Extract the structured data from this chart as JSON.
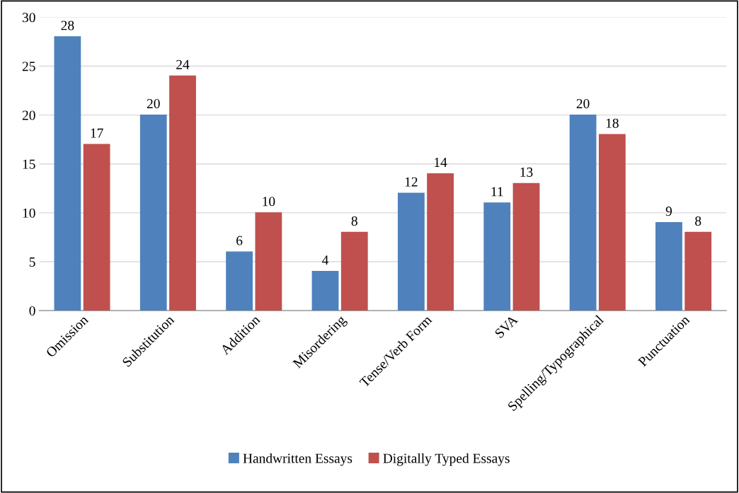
{
  "chart_data": {
    "type": "bar",
    "categories": [
      "Omission",
      "Substitution",
      "Addition",
      "Misordering",
      "Tense/Verb Form",
      "SVA",
      "Spelling/Typographical",
      "Punctuation"
    ],
    "series": [
      {
        "name": "Handwritten Essays",
        "color": "#4f81bd",
        "values": [
          28,
          20,
          6,
          4,
          12,
          11,
          20,
          9
        ]
      },
      {
        "name": "Digitally Typed Essays",
        "color": "#c0504d",
        "values": [
          17,
          24,
          10,
          8,
          14,
          13,
          18,
          8
        ]
      }
    ],
    "ylim": [
      0,
      30
    ],
    "yticks": [
      0,
      5,
      10,
      15,
      20,
      25,
      30
    ],
    "grid": "y",
    "legend": "bottom",
    "data_labels": true
  }
}
